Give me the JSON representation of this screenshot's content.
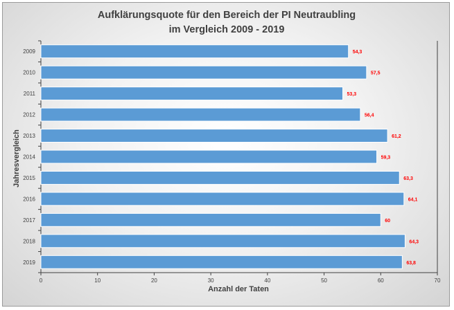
{
  "chart_data": {
    "type": "bar",
    "orientation": "horizontal",
    "title": [
      "Aufklärungsquote für den Bereich der PI Neutraubling",
      "im Vergleich 2009 - 2019"
    ],
    "xlabel": "Anzahl der Taten",
    "ylabel": "Jahresvergleich",
    "categories": [
      "2009",
      "2010",
      "2011",
      "2012",
      "2013",
      "2014",
      "2015",
      "2016",
      "2017",
      "2018",
      "2019"
    ],
    "values": [
      54.3,
      57.5,
      53.3,
      56.4,
      61.2,
      59.3,
      63.3,
      64.1,
      60,
      64.3,
      63.8
    ],
    "value_labels": [
      "54,3",
      "57,5",
      "53,3",
      "56,4",
      "61,2",
      "59,3",
      "63,3",
      "64,1",
      "60",
      "64,3",
      "63,8"
    ],
    "xlim": [
      0,
      70
    ],
    "xticks": [
      "0",
      "10",
      "20",
      "30",
      "40",
      "50",
      "60",
      "70"
    ],
    "grid": false,
    "legend": "none",
    "colors": {
      "bar": "#5b9bd5",
      "bar_edge": "#ffffff",
      "data_label": "#ff0000",
      "text": "#404040",
      "axis": "#404040"
    }
  }
}
